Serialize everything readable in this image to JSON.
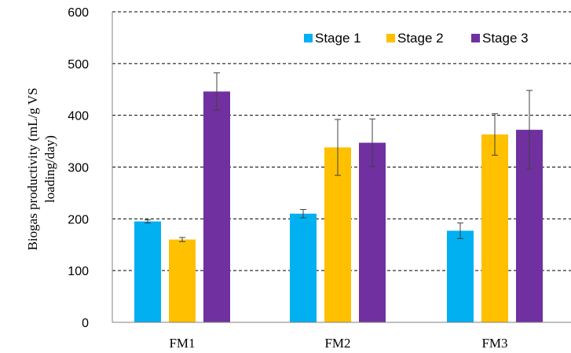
{
  "chart_data": {
    "type": "bar",
    "categories": [
      "FM1",
      "FM2",
      "FM3"
    ],
    "series": [
      {
        "name": "Stage 1",
        "color": "#00B0F0",
        "values": [
          195,
          210,
          177
        ],
        "errors": [
          3,
          8,
          15
        ]
      },
      {
        "name": "Stage 2",
        "color": "#FFC000",
        "values": [
          160,
          338,
          363
        ],
        "errors": [
          4,
          54,
          40
        ]
      },
      {
        "name": "Stage 3",
        "color": "#7030A0",
        "values": [
          446,
          347,
          372
        ],
        "errors": [
          36,
          46,
          76
        ]
      }
    ],
    "ylabel_lines": [
      "Biogas productivity  (mL/g VS",
      "loading/day)"
    ],
    "ylim": [
      0,
      600
    ],
    "yticks": [
      0,
      100,
      200,
      300,
      400,
      500,
      600
    ],
    "grid": "dashed horizontal",
    "legend_position": "top-right"
  }
}
